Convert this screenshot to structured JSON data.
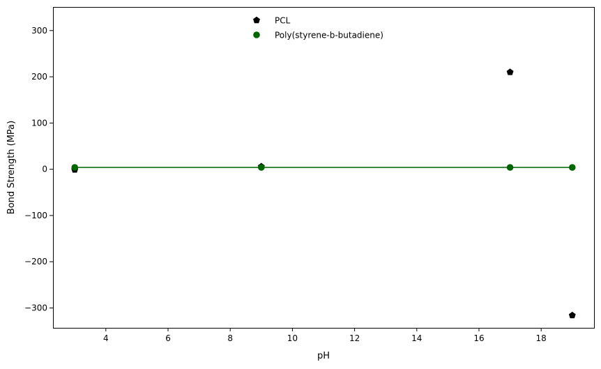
{
  "chart_data": {
    "type": "scatter",
    "xlabel": "pH",
    "ylabel": "Bond Strength (MPa)",
    "xlim": [
      2.3,
      19.7
    ],
    "ylim": [
      -343,
      351
    ],
    "xticks": [
      4,
      6,
      8,
      10,
      12,
      14,
      16,
      18
    ],
    "yticks": [
      300,
      200,
      100,
      0,
      -100,
      -200,
      -300
    ],
    "xtick_labels": [
      "4",
      "6",
      "8",
      "10",
      "12",
      "14",
      "16",
      "18"
    ],
    "ytick_labels": [
      "300",
      "200",
      "100",
      "0",
      "−100",
      "−200",
      "−300"
    ],
    "grid": false,
    "legend_position": "top-center",
    "series": [
      {
        "name": "PCL",
        "marker": "pentagon",
        "color": "#000000",
        "x": [
          3,
          9,
          17,
          19
        ],
        "y": [
          -1,
          6,
          210,
          -316
        ],
        "line": false
      },
      {
        "name": "Poly(styrene-b-butadiene)",
        "marker": "circle",
        "color": "#006400",
        "x": [
          3,
          9,
          17,
          19
        ],
        "y": [
          4,
          4,
          4,
          4
        ],
        "line": true
      }
    ]
  }
}
